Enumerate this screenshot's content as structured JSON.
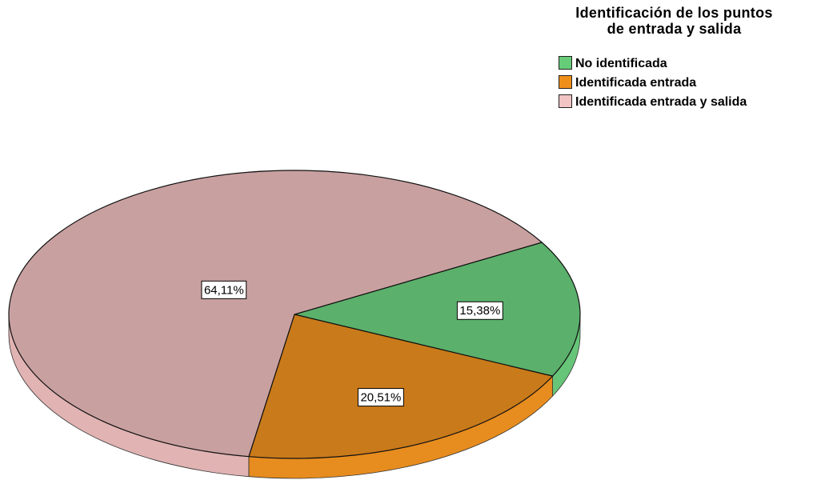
{
  "chart_data": {
    "type": "pie3d",
    "legend_title": "Identificación de los puntos de entrada y salida",
    "categories": [
      "No identificada",
      "Identificada entrada",
      "Identificada entrada y salida"
    ],
    "values": [
      15.38,
      20.51,
      64.11
    ],
    "value_labels": [
      "15,38%",
      "20,51%",
      "64,11%"
    ],
    "colors": [
      "#5bb06b",
      "#c97a1a",
      "#c9a0a0"
    ],
    "legend_colors": [
      "#66cc77",
      "#ef8f1a",
      "#f2c4c4"
    ],
    "legend": "top-right"
  }
}
